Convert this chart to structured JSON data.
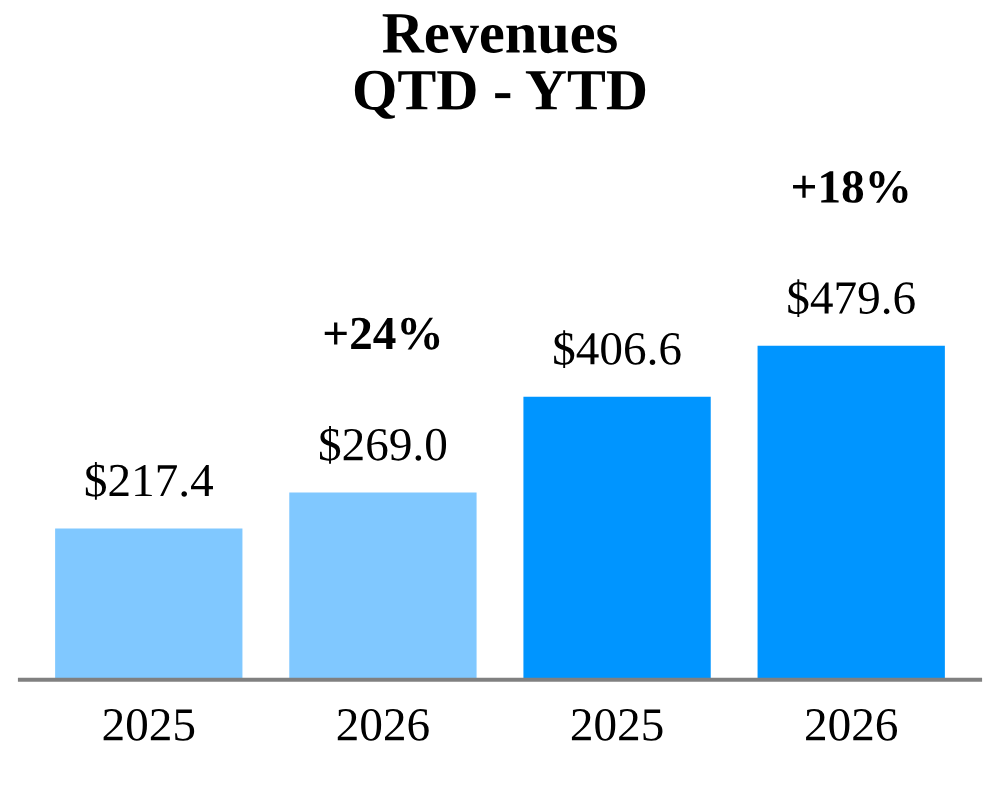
{
  "chart_data": {
    "type": "bar",
    "title": "Revenues\nQTD - YTD",
    "categories": [
      "2025",
      "2026",
      "2025",
      "2026"
    ],
    "values": [
      217.4,
      269.0,
      406.6,
      479.6
    ],
    "colors": [
      "#80c8ff",
      "#80c8ff",
      "#0095ff",
      "#0095ff"
    ],
    "value_labels": [
      "$217.4",
      "$269.0",
      "$406.6",
      "$479.6"
    ],
    "annotations": [
      "+24%",
      "+18%"
    ],
    "grid": false,
    "legend": false
  }
}
